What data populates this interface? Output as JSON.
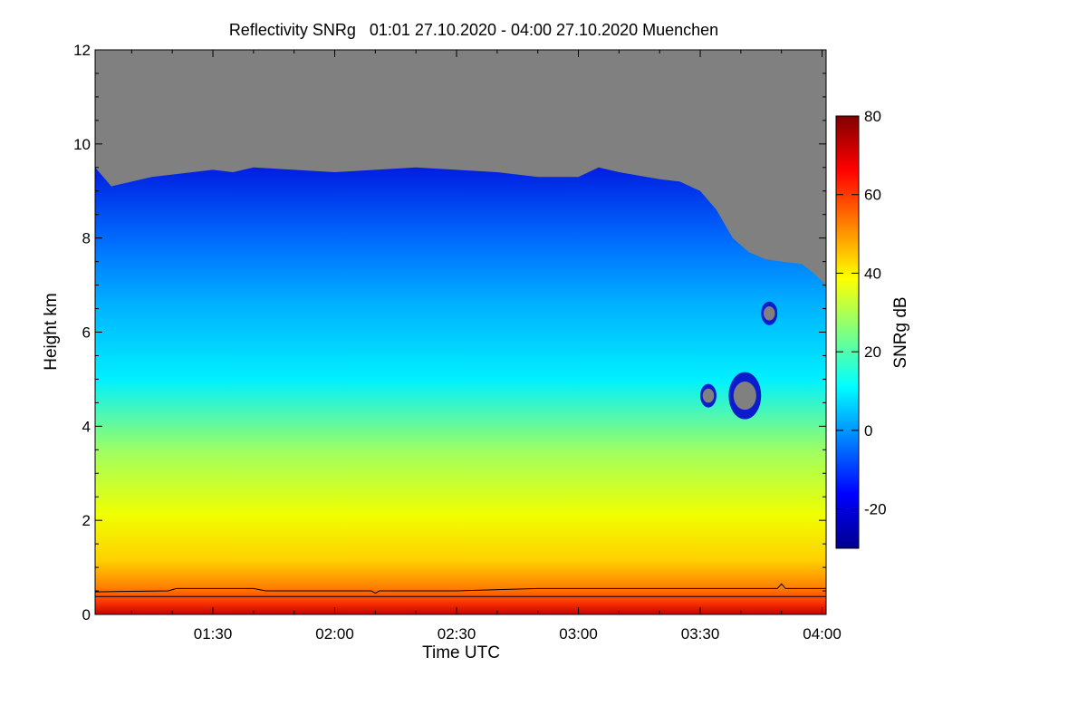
{
  "chart_data": {
    "type": "heatmap",
    "title": "Reflectivity SNRg   01:01 27.10.2020 - 04:00 27.10.2020 Muenchen",
    "xlabel": "Time UTC",
    "ylabel": "Height km",
    "colorbar_label": "SNRg dB",
    "xlim_minutes": [
      61,
      241
    ],
    "x_ticks": [
      {
        "minutes": 90,
        "label": "01:30"
      },
      {
        "minutes": 120,
        "label": "02:00"
      },
      {
        "minutes": 150,
        "label": "02:30"
      },
      {
        "minutes": 180,
        "label": "03:00"
      },
      {
        "minutes": 210,
        "label": "03:30"
      },
      {
        "minutes": 240,
        "label": "04:00"
      }
    ],
    "ylim_km": [
      0,
      12
    ],
    "y_ticks": [
      {
        "value": 0,
        "label": "0"
      },
      {
        "value": 2,
        "label": "2"
      },
      {
        "value": 4,
        "label": "4"
      },
      {
        "value": 6,
        "label": "6"
      },
      {
        "value": 8,
        "label": "8"
      },
      {
        "value": 10,
        "label": "10"
      },
      {
        "value": 12,
        "label": "12"
      }
    ],
    "clim_db": [
      -30,
      80
    ],
    "colorbar_ticks": [
      {
        "value": -20,
        "label": "-20"
      },
      {
        "value": 0,
        "label": "0"
      },
      {
        "value": 20,
        "label": "20"
      },
      {
        "value": 40,
        "label": "40"
      },
      {
        "value": 60,
        "label": "60"
      },
      {
        "value": 80,
        "label": "80"
      }
    ],
    "no_signal_color": "#808080",
    "colormap": [
      "#00008f",
      "#0000ff",
      "#0080ff",
      "#00ffff",
      "#80ff80",
      "#ffff00",
      "#ff8000",
      "#ff0000",
      "#800000"
    ],
    "echo_top_km": [
      [
        61,
        9.5
      ],
      [
        65,
        9.1
      ],
      [
        70,
        9.2
      ],
      [
        75,
        9.3
      ],
      [
        80,
        9.35
      ],
      [
        85,
        9.4
      ],
      [
        90,
        9.45
      ],
      [
        95,
        9.4
      ],
      [
        100,
        9.5
      ],
      [
        110,
        9.45
      ],
      [
        120,
        9.4
      ],
      [
        130,
        9.45
      ],
      [
        140,
        9.5
      ],
      [
        150,
        9.45
      ],
      [
        160,
        9.4
      ],
      [
        170,
        9.3
      ],
      [
        180,
        9.3
      ],
      [
        185,
        9.5
      ],
      [
        190,
        9.4
      ],
      [
        200,
        9.25
      ],
      [
        205,
        9.2
      ],
      [
        210,
        9.0
      ],
      [
        214,
        8.6
      ],
      [
        218,
        8.0
      ],
      [
        222,
        7.7
      ],
      [
        226,
        7.55
      ],
      [
        230,
        7.5
      ],
      [
        235,
        7.45
      ],
      [
        238,
        7.25
      ],
      [
        241,
        7.0
      ]
    ],
    "gaps": [
      {
        "t": 227,
        "h": 6.4,
        "dt": 2.0,
        "dh": 0.25
      },
      {
        "t": 221,
        "h": 4.65,
        "dt": 4.0,
        "dh": 0.5
      },
      {
        "t": 212,
        "h": 4.65,
        "dt": 2.0,
        "dh": 0.25
      }
    ],
    "lines": [
      {
        "name": "upper boundary",
        "points": [
          [
            61,
            0.48
          ],
          [
            79,
            0.5
          ],
          [
            81,
            0.55
          ],
          [
            100,
            0.55
          ],
          [
            103,
            0.5
          ],
          [
            129,
            0.5
          ],
          [
            130,
            0.45
          ],
          [
            131,
            0.5
          ],
          [
            150,
            0.5
          ],
          [
            170,
            0.55
          ],
          [
            229,
            0.55
          ],
          [
            230,
            0.65
          ],
          [
            231,
            0.55
          ],
          [
            241,
            0.55
          ]
        ]
      },
      {
        "name": "lower boundary",
        "points": [
          [
            61,
            0.38
          ],
          [
            241,
            0.38
          ]
        ]
      }
    ]
  }
}
